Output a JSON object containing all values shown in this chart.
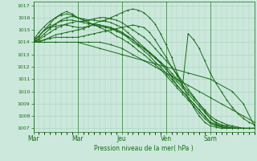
{
  "title": "Pression niveau de la mer( hPa )",
  "bg_color": "#cce8dc",
  "line_color": "#1a6b1a",
  "grid_color": "#a8d0bc",
  "axis_tick_color": "#1a6b1a",
  "ylim": [
    1007,
    1017
  ],
  "yticks": [
    1007,
    1008,
    1009,
    1010,
    1011,
    1012,
    1013,
    1014,
    1015,
    1016,
    1017
  ],
  "day_labels": [
    "Mar",
    "Mar",
    "Jeu",
    "Ven",
    "Sam"
  ],
  "day_positions": [
    0,
    48,
    96,
    144,
    192
  ],
  "xlim": [
    0,
    240
  ],
  "lines": [
    [
      0,
      1014.2,
      6,
      1014.5,
      12,
      1015.0,
      18,
      1015.2,
      24,
      1015.3,
      30,
      1015.4,
      36,
      1015.4,
      42,
      1015.3,
      48,
      1015.2,
      54,
      1015.2,
      60,
      1015.3,
      66,
      1015.4,
      72,
      1015.4,
      78,
      1015.3,
      84,
      1015.2,
      90,
      1015.0,
      96,
      1014.8,
      102,
      1014.5,
      108,
      1014.2,
      114,
      1013.8,
      120,
      1013.5,
      126,
      1013.2,
      132,
      1012.8,
      138,
      1012.4,
      144,
      1012.0,
      150,
      1011.5,
      156,
      1011.0,
      162,
      1010.5,
      168,
      1010.0,
      174,
      1009.5,
      180,
      1009.0,
      186,
      1008.5,
      192,
      1008.0,
      198,
      1007.7,
      204,
      1007.5,
      210,
      1007.3,
      216,
      1007.2,
      222,
      1007.1,
      228,
      1007.0,
      234,
      1007.0,
      240,
      1007.0
    ],
    [
      0,
      1014.2,
      6,
      1014.5,
      12,
      1015.0,
      18,
      1015.3,
      24,
      1015.5,
      30,
      1015.7,
      36,
      1015.8,
      42,
      1015.8,
      48,
      1015.7,
      54,
      1015.6,
      60,
      1015.5,
      66,
      1015.5,
      72,
      1015.4,
      78,
      1015.3,
      84,
      1015.2,
      90,
      1015.0,
      96,
      1014.8,
      102,
      1014.5,
      108,
      1014.2,
      114,
      1013.8,
      120,
      1013.5,
      126,
      1013.1,
      132,
      1012.7,
      138,
      1012.3,
      144,
      1011.8,
      150,
      1011.3,
      156,
      1010.8,
      162,
      1010.3,
      168,
      1009.8,
      174,
      1009.3,
      180,
      1008.8,
      186,
      1008.3,
      192,
      1007.8,
      198,
      1007.5,
      204,
      1007.3,
      210,
      1007.2,
      216,
      1007.1,
      222,
      1007.0,
      228,
      1007.0,
      234,
      1007.0,
      240,
      1007.0
    ],
    [
      0,
      1014.2,
      6,
      1014.8,
      12,
      1015.3,
      18,
      1015.7,
      24,
      1016.0,
      30,
      1016.2,
      36,
      1016.3,
      42,
      1016.2,
      48,
      1016.0,
      54,
      1015.8,
      60,
      1015.6,
      66,
      1015.4,
      72,
      1015.3,
      78,
      1015.2,
      84,
      1015.1,
      90,
      1014.9,
      96,
      1014.7,
      102,
      1014.4,
      108,
      1014.0,
      114,
      1013.7,
      120,
      1013.3,
      126,
      1012.9,
      132,
      1012.4,
      138,
      1012.0,
      144,
      1011.5,
      150,
      1011.0,
      156,
      1010.5,
      162,
      1010.0,
      168,
      1009.5,
      174,
      1009.0,
      180,
      1008.5,
      186,
      1008.0,
      192,
      1007.5,
      198,
      1007.3,
      204,
      1007.1,
      210,
      1007.0,
      216,
      1007.0,
      222,
      1007.0,
      228,
      1007.0,
      234,
      1007.0,
      240,
      1007.0
    ],
    [
      0,
      1014.0,
      6,
      1014.5,
      12,
      1015.0,
      18,
      1015.5,
      24,
      1016.0,
      30,
      1016.3,
      36,
      1016.5,
      42,
      1016.3,
      48,
      1016.0,
      54,
      1015.8,
      60,
      1015.6,
      66,
      1015.4,
      72,
      1015.2,
      78,
      1015.0,
      84,
      1014.8,
      90,
      1014.5,
      96,
      1014.3,
      102,
      1014.0,
      108,
      1013.7,
      114,
      1013.3,
      120,
      1013.0,
      126,
      1012.6,
      132,
      1012.2,
      138,
      1011.8,
      144,
      1011.3,
      150,
      1010.8,
      156,
      1010.3,
      162,
      1009.8,
      168,
      1009.3,
      174,
      1008.8,
      180,
      1008.3,
      186,
      1007.8,
      192,
      1007.4,
      198,
      1007.2,
      204,
      1007.1,
      210,
      1007.0,
      216,
      1007.0,
      222,
      1007.0,
      228,
      1007.0,
      234,
      1007.0,
      240,
      1007.0
    ],
    [
      0,
      1014.0,
      6,
      1014.3,
      12,
      1014.7,
      18,
      1015.1,
      24,
      1015.5,
      30,
      1015.8,
      36,
      1016.0,
      42,
      1016.1,
      48,
      1016.0,
      54,
      1015.9,
      60,
      1015.8,
      66,
      1015.8,
      72,
      1015.7,
      78,
      1015.7,
      84,
      1015.6,
      90,
      1015.4,
      96,
      1015.2,
      102,
      1014.8,
      108,
      1014.4,
      114,
      1014.0,
      120,
      1013.6,
      126,
      1013.2,
      132,
      1012.8,
      138,
      1012.3,
      144,
      1011.8,
      150,
      1011.2,
      156,
      1010.5,
      162,
      1010.0,
      168,
      1009.5,
      174,
      1009.0,
      180,
      1008.5,
      186,
      1008.0,
      192,
      1007.5,
      198,
      1007.3,
      204,
      1007.2,
      210,
      1007.1,
      216,
      1007.0,
      222,
      1007.0,
      228,
      1007.0,
      234,
      1007.0,
      240,
      1007.0
    ],
    [
      0,
      1014.0,
      6,
      1014.2,
      12,
      1014.5,
      18,
      1014.8,
      24,
      1015.1,
      30,
      1015.3,
      36,
      1015.5,
      42,
      1015.6,
      48,
      1015.7,
      54,
      1015.7,
      60,
      1015.8,
      66,
      1015.9,
      72,
      1016.0,
      78,
      1016.0,
      84,
      1015.9,
      90,
      1015.8,
      96,
      1015.6,
      102,
      1015.3,
      108,
      1015.0,
      114,
      1014.7,
      120,
      1014.4,
      126,
      1014.0,
      132,
      1013.5,
      138,
      1013.0,
      144,
      1012.5,
      150,
      1012.0,
      156,
      1011.4,
      162,
      1010.8,
      168,
      1010.2,
      174,
      1009.6,
      180,
      1009.0,
      186,
      1008.4,
      192,
      1007.8,
      198,
      1007.4,
      204,
      1007.2,
      210,
      1007.1,
      216,
      1007.0,
      222,
      1007.0,
      228,
      1007.0,
      234,
      1007.0,
      240,
      1007.0
    ],
    [
      0,
      1014.0,
      6,
      1014.0,
      12,
      1014.2,
      18,
      1014.4,
      24,
      1014.6,
      30,
      1014.7,
      36,
      1014.8,
      42,
      1014.9,
      48,
      1015.0,
      54,
      1015.1,
      60,
      1015.3,
      66,
      1015.5,
      72,
      1015.7,
      78,
      1015.8,
      84,
      1016.0,
      90,
      1016.2,
      96,
      1016.4,
      102,
      1016.6,
      108,
      1016.7,
      114,
      1016.6,
      120,
      1016.4,
      126,
      1016.0,
      132,
      1015.5,
      138,
      1014.7,
      144,
      1013.8,
      150,
      1012.8,
      156,
      1011.5,
      162,
      1010.5,
      168,
      1009.5,
      174,
      1008.7,
      180,
      1008.0,
      186,
      1007.5,
      192,
      1007.2,
      198,
      1007.1,
      204,
      1007.0,
      210,
      1007.0,
      216,
      1007.0,
      222,
      1007.0,
      228,
      1007.0,
      234,
      1007.0,
      240,
      1007.0
    ],
    [
      0,
      1014.0,
      6,
      1014.1,
      12,
      1014.2,
      18,
      1014.3,
      24,
      1014.4,
      30,
      1014.4,
      36,
      1014.4,
      42,
      1014.4,
      48,
      1014.4,
      54,
      1014.5,
      60,
      1014.6,
      66,
      1014.7,
      72,
      1014.8,
      78,
      1014.9,
      84,
      1015.0,
      90,
      1015.1,
      96,
      1015.2,
      102,
      1015.3,
      108,
      1015.4,
      114,
      1015.3,
      120,
      1015.2,
      126,
      1014.8,
      132,
      1014.2,
      138,
      1013.5,
      144,
      1012.8,
      150,
      1012.0,
      156,
      1011.3,
      162,
      1010.5,
      168,
      1014.7,
      174,
      1014.2,
      180,
      1013.5,
      186,
      1012.5,
      192,
      1011.5,
      198,
      1010.7,
      204,
      1010.0,
      210,
      1009.3,
      216,
      1008.7,
      222,
      1008.2,
      228,
      1007.8,
      234,
      1007.5,
      240,
      1007.3
    ],
    [
      0,
      1014.0,
      12,
      1014.0,
      24,
      1014.0,
      36,
      1014.0,
      48,
      1014.0,
      60,
      1014.0,
      72,
      1014.0,
      84,
      1013.8,
      96,
      1013.5,
      108,
      1013.0,
      120,
      1012.5,
      132,
      1012.0,
      144,
      1011.5,
      156,
      1011.0,
      168,
      1010.5,
      180,
      1010.0,
      192,
      1009.5,
      204,
      1009.0,
      216,
      1008.5,
      228,
      1008.0,
      240,
      1007.5
    ],
    [
      0,
      1014.0,
      24,
      1014.0,
      48,
      1014.0,
      72,
      1013.5,
      96,
      1013.0,
      120,
      1012.5,
      144,
      1012.0,
      168,
      1011.5,
      192,
      1011.0,
      216,
      1010.0,
      228,
      1009.0,
      240,
      1007.2
    ]
  ],
  "marker": "+",
  "marker_size": 2,
  "line_width": 0.7
}
